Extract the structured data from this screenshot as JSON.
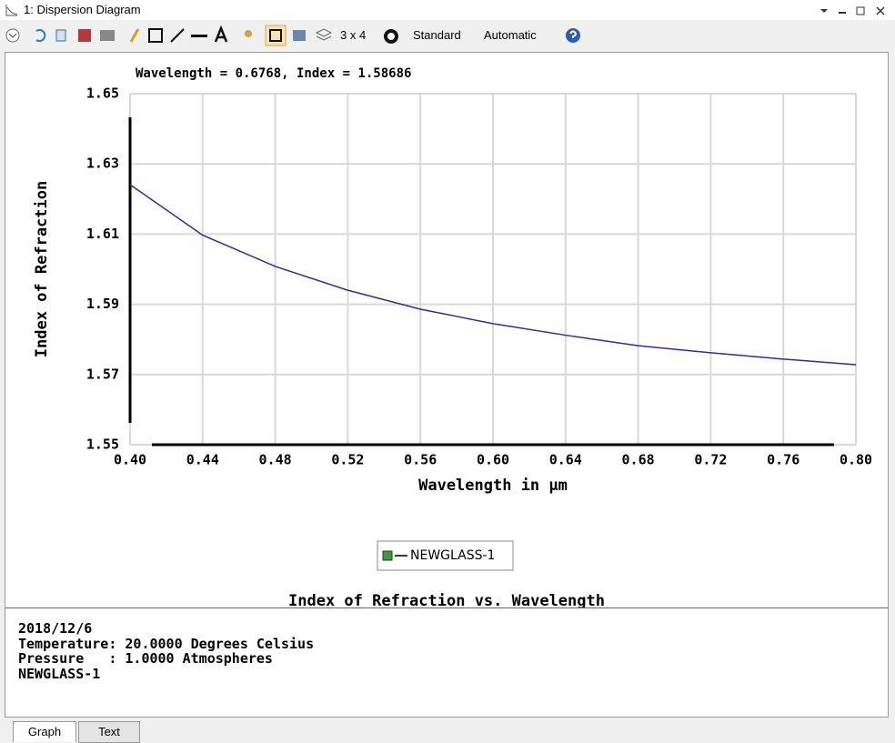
{
  "window": {
    "title": "1: Dispersion Diagram"
  },
  "toolbar": {
    "layout": "3 x 4",
    "style": "Standard",
    "scale": "Automatic"
  },
  "chart_data": {
    "type": "line",
    "annotation": "Wavelength = 0.6768, Index = 1.58686",
    "title": "Index of Refraction vs. Wavelength",
    "x_label": "Wavelength in µm",
    "y_label": "Index of Refraction",
    "x": [
      0.4,
      0.44,
      0.48,
      0.52,
      0.56,
      0.6,
      0.64,
      0.68,
      0.72,
      0.76,
      0.8
    ],
    "series": [
      {
        "name": "NEWGLASS-1",
        "color": "#2b2bb0",
        "values": [
          1.6241,
          1.6097,
          1.6008,
          1.594,
          1.5886,
          1.5845,
          1.5812,
          1.5782,
          1.5762,
          1.5744,
          1.5728
        ]
      }
    ],
    "xlim": [
      0.4,
      0.8
    ],
    "xticks": [
      {
        "value": 0.4,
        "label": "0.40"
      },
      {
        "value": 0.44,
        "label": "0.44"
      },
      {
        "value": 0.48,
        "label": "0.48"
      },
      {
        "value": 0.52,
        "label": "0.52"
      },
      {
        "value": 0.56,
        "label": "0.56"
      },
      {
        "value": 0.6,
        "label": "0.60"
      },
      {
        "value": 0.64,
        "label": "0.64"
      },
      {
        "value": 0.68,
        "label": "0.68"
      },
      {
        "value": 0.72,
        "label": "0.72"
      },
      {
        "value": 0.76,
        "label": "0.76"
      },
      {
        "value": 0.8,
        "label": "0.80"
      }
    ],
    "ylim": [
      1.55,
      1.65
    ],
    "yticks": [
      1.55,
      1.57,
      1.59,
      1.61,
      1.63,
      1.65
    ],
    "grid": true
  },
  "info": {
    "lines": [
      "2018/12/6",
      "Temperature: 20.0000 Degrees Celsius",
      "Pressure   : 1.0000 Atmospheres",
      "NEWGLASS-1"
    ]
  },
  "tabs": [
    "Graph",
    "Text"
  ]
}
